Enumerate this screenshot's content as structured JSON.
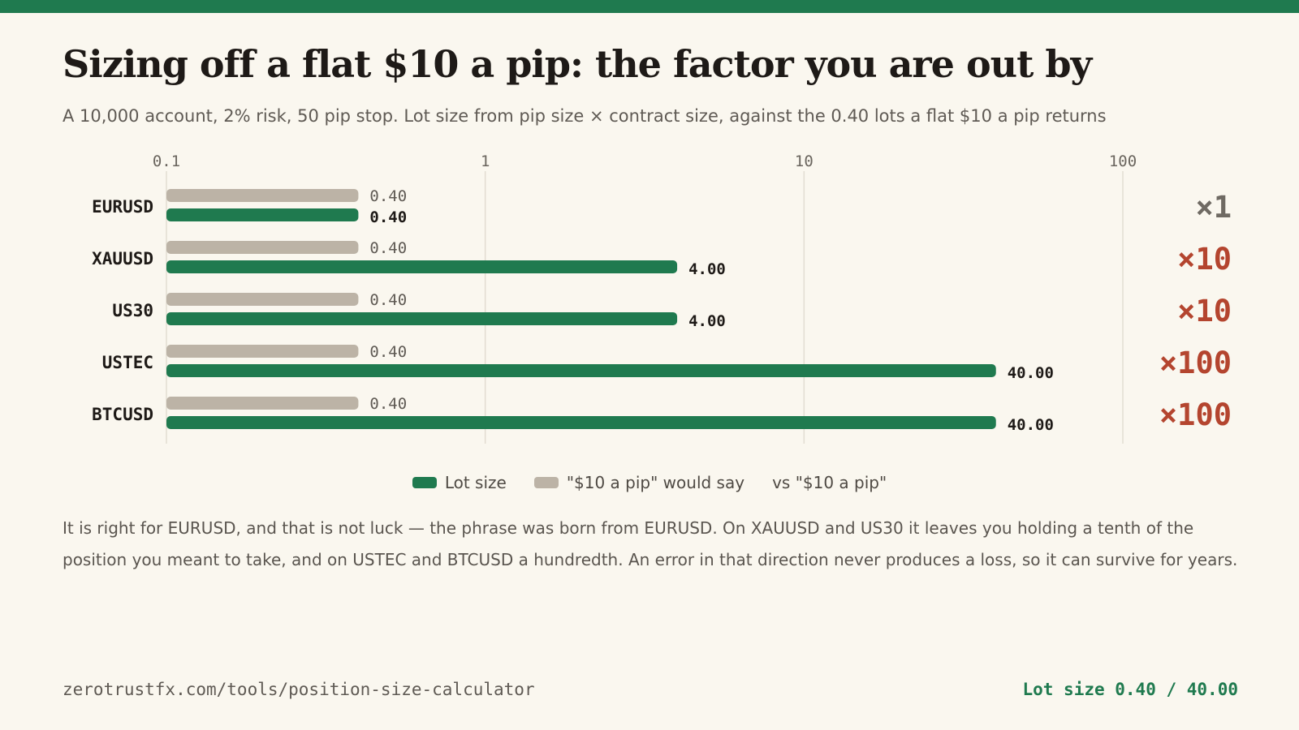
{
  "title": "Sizing off a flat $10 a pip: the factor you are out by",
  "subtitle": "A 10,000 account, 2% risk, 50 pip stop. Lot size from pip size × contract size, against the 0.40 lots a flat $10 a pip returns",
  "colors": {
    "top_bar": "#1f7a4f",
    "lot_size": "#1f7a4f",
    "flat_rate": "#bcb3a6",
    "factor_ok": "#6f6a63",
    "factor_bad": "#b4452f",
    "grid": "#e2ddd2"
  },
  "chart_data": {
    "type": "bar",
    "orientation": "horizontal",
    "x_scale": "log",
    "xlim": [
      0.1,
      100
    ],
    "x_ticks": [
      "0.1",
      "1",
      "10",
      "100"
    ],
    "categories": [
      "EURUSD",
      "XAUUSD",
      "US30",
      "USTEC",
      "BTCUSD"
    ],
    "series": [
      {
        "name": "\"$10 a pip\" would say",
        "values": [
          0.4,
          0.4,
          0.4,
          0.4,
          0.4
        ],
        "labels": [
          "0.40",
          "0.40",
          "0.40",
          "0.40",
          "0.40"
        ]
      },
      {
        "name": "Lot size",
        "values": [
          0.4,
          4.0,
          4.0,
          40.0,
          40.0
        ],
        "labels": [
          "0.40",
          "4.00",
          "4.00",
          "40.00",
          "40.00"
        ]
      }
    ],
    "factor_column_label": "vs \"$10 a pip\"",
    "factors": [
      "×1",
      "×10",
      "×10",
      "×100",
      "×100"
    ],
    "grid": true,
    "legend_position": "bottom-center"
  },
  "legend": {
    "lot_size": "Lot size",
    "flat": "\"$10 a pip\" would say",
    "factor": "vs \"$10 a pip\""
  },
  "note": "It is right for EURUSD, and that is not luck — the phrase was born from EURUSD. On XAUUSD and US30 it leaves you holding a tenth of the position you meant to take, and on USTEC and BTCUSD a hundredth. An error in that direction never produces a loss, so it can survive for years.",
  "footer": {
    "url": "zerotrustfx.com/tools/position-size-calculator",
    "stat": "Lot size 0.40 / 40.00"
  }
}
